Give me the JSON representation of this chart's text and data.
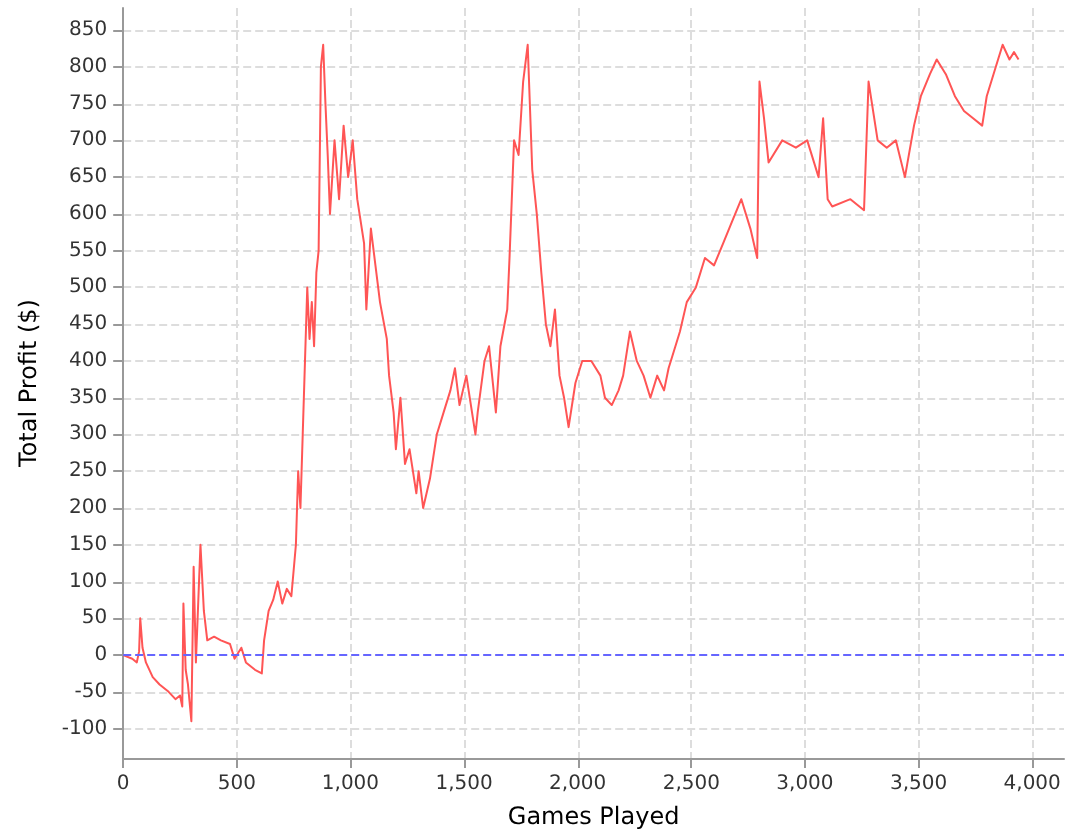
{
  "chart_data": {
    "type": "line",
    "xlabel": "Games Played",
    "ylabel": "Total Profit ($)",
    "xlim": [
      0,
      4140
    ],
    "ylim": [
      -140,
      880
    ],
    "xticks": [
      0,
      500,
      {
        "value": 1000,
        "label": "1,000"
      },
      {
        "value": 1500,
        "label": "1,500"
      },
      {
        "value": 2000,
        "label": "2,000"
      },
      {
        "value": 2500,
        "label": "2,500"
      },
      {
        "value": 3000,
        "label": "3,000"
      },
      {
        "value": 3500,
        "label": "3,500"
      },
      {
        "value": 4000,
        "label": "4,000"
      }
    ],
    "yticks": [
      -100,
      -50,
      0,
      50,
      100,
      150,
      200,
      250,
      300,
      350,
      400,
      450,
      500,
      550,
      600,
      650,
      700,
      750,
      800,
      850
    ],
    "grid": true,
    "marker": "none",
    "line_style": "solid",
    "ref_lines": [
      {
        "axis": "y",
        "value": 0,
        "color": "#6666ff",
        "line_style": "dashed"
      }
    ],
    "series": [
      {
        "color": "#ff5555",
        "x": [
          0,
          40,
          60,
          70,
          75,
          85,
          100,
          130,
          160,
          200,
          230,
          250,
          260,
          265,
          275,
          285,
          300,
          310,
          320,
          340,
          355,
          370,
          400,
          430,
          470,
          490,
          520,
          540,
          580,
          610,
          620,
          640,
          660,
          680,
          700,
          720,
          740,
          760,
          770,
          780,
          790,
          800,
          810,
          820,
          830,
          840,
          850,
          860,
          870,
          880,
          890,
          900,
          910,
          930,
          950,
          970,
          990,
          1010,
          1030,
          1060,
          1070,
          1090,
          1110,
          1130,
          1160,
          1170,
          1190,
          1200,
          1220,
          1240,
          1260,
          1290,
          1300,
          1320,
          1350,
          1380,
          1410,
          1440,
          1460,
          1480,
          1510,
          1550,
          1560,
          1590,
          1610,
          1640,
          1660,
          1690,
          1700,
          1720,
          1740,
          1760,
          1780,
          1800,
          1820,
          1840,
          1860,
          1880,
          1900,
          1920,
          1940,
          1960,
          1990,
          2020,
          2060,
          2100,
          2120,
          2150,
          2180,
          2200,
          2230,
          2260,
          2290,
          2320,
          2350,
          2380,
          2400,
          2430,
          2450,
          2480,
          2520,
          2560,
          2600,
          2640,
          2680,
          2720,
          2760,
          2790,
          2800,
          2820,
          2840,
          2900,
          2960,
          3010,
          3040,
          3060,
          3080,
          3100,
          3120,
          3200,
          3260,
          3280,
          3320,
          3360,
          3400,
          3440,
          3480,
          3510,
          3550,
          3580,
          3620,
          3660,
          3700,
          3740,
          3780,
          3800,
          3840,
          3870,
          3900,
          3920,
          3940
        ],
        "values": [
          0,
          -5,
          -10,
          5,
          50,
          10,
          -10,
          -30,
          -40,
          -50,
          -60,
          -55,
          -70,
          70,
          -20,
          -40,
          -90,
          120,
          -10,
          150,
          60,
          20,
          25,
          20,
          15,
          -5,
          10,
          -10,
          -20,
          -25,
          20,
          60,
          75,
          100,
          70,
          90,
          80,
          150,
          250,
          200,
          300,
          400,
          500,
          430,
          480,
          420,
          520,
          550,
          800,
          830,
          750,
          680,
          600,
          700,
          620,
          720,
          650,
          700,
          620,
          560,
          470,
          580,
          530,
          480,
          430,
          380,
          330,
          280,
          350,
          260,
          280,
          220,
          250,
          200,
          240,
          300,
          330,
          360,
          390,
          340,
          380,
          300,
          330,
          400,
          420,
          330,
          420,
          470,
          540,
          700,
          680,
          780,
          830,
          660,
          600,
          520,
          450,
          420,
          470,
          380,
          350,
          310,
          370,
          400,
          400,
          380,
          350,
          340,
          360,
          380,
          440,
          400,
          380,
          350,
          380,
          360,
          390,
          420,
          440,
          480,
          500,
          540,
          530,
          560,
          590,
          620,
          580,
          540,
          780,
          730,
          670,
          700,
          690,
          700,
          670,
          650,
          730,
          620,
          610,
          620,
          605,
          780,
          700,
          690,
          700,
          650,
          720,
          760,
          790,
          810,
          790,
          760,
          740,
          730,
          720,
          760,
          800,
          830,
          810,
          820,
          810
        ]
      }
    ]
  }
}
